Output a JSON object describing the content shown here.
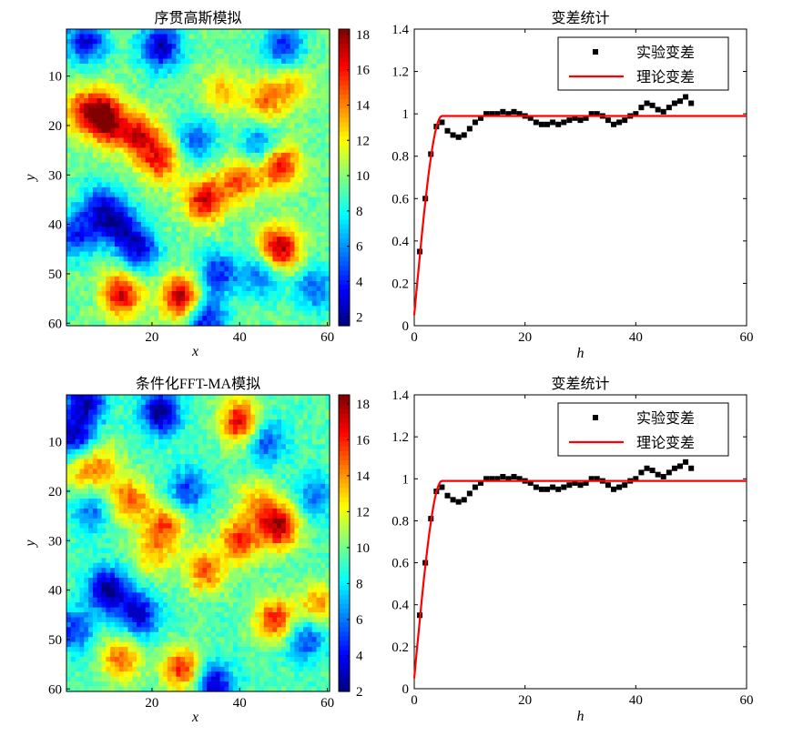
{
  "chart_data": [
    {
      "type": "heatmap",
      "title": "序贯高斯模拟",
      "xlabel": "x",
      "ylabel": "y",
      "xlim": [
        0.5,
        60.5
      ],
      "ylim": [
        0.5,
        60.5
      ],
      "xticks": [
        "20",
        "40",
        "60"
      ],
      "yticks": [
        "10",
        "20",
        "30",
        "40",
        "50",
        "60"
      ],
      "colorbar": {
        "range": [
          1.5,
          18.3
        ],
        "ticks": [
          "2",
          "4",
          "6",
          "8",
          "10",
          "12",
          "14",
          "16",
          "18"
        ],
        "colormap": "jet"
      },
      "base_value": 9.5,
      "peaks": [
        [
          8,
          17,
          16
        ],
        [
          10,
          20,
          15
        ],
        [
          17,
          22,
          16
        ],
        [
          22,
          27,
          16
        ],
        [
          32,
          35,
          17
        ],
        [
          40,
          31,
          15
        ],
        [
          49,
          28,
          17
        ],
        [
          49,
          45,
          18
        ],
        [
          13,
          54,
          17
        ],
        [
          27,
          55,
          18
        ],
        [
          46,
          15,
          14
        ],
        [
          36,
          13,
          13
        ],
        [
          3,
          17,
          13
        ],
        [
          52,
          12,
          13
        ]
      ],
      "lows": [
        [
          5,
          3,
          3
        ],
        [
          22,
          4,
          2
        ],
        [
          12,
          40,
          3
        ],
        [
          17,
          45,
          3
        ],
        [
          32,
          59,
          3
        ],
        [
          3,
          42,
          4
        ],
        [
          30,
          23,
          5
        ],
        [
          35,
          50,
          4
        ],
        [
          45,
          50,
          5
        ],
        [
          57,
          53,
          5
        ],
        [
          45,
          24,
          5
        ],
        [
          50,
          4,
          4
        ],
        [
          8,
          36,
          5
        ]
      ]
    },
    {
      "type": "scatter",
      "title": "变差统计",
      "xlabel": "h",
      "ylabel": "",
      "xlim": [
        0,
        60
      ],
      "ylim": [
        0,
        1.4
      ],
      "xticks": [
        "0",
        "20",
        "40",
        "60"
      ],
      "yticks": [
        "0",
        "0.2",
        "0.4",
        "0.6",
        "0.8",
        "1",
        "1.2",
        "1.4"
      ],
      "legend": {
        "placement": "top-right",
        "entries": [
          "实验变差",
          "理论变差"
        ]
      },
      "series": [
        {
          "name": "实验变差",
          "color": "#000000",
          "x": [
            1,
            2,
            3,
            4,
            5,
            6,
            7,
            8,
            9,
            10,
            11,
            12,
            13,
            14,
            15,
            16,
            17,
            18,
            19,
            20,
            21,
            22,
            23,
            24,
            25,
            26,
            27,
            28,
            29,
            30,
            31,
            32,
            33,
            34,
            35,
            36,
            37,
            38,
            39,
            40,
            41,
            42,
            43,
            44,
            45,
            46,
            47,
            48,
            49,
            50
          ],
          "y": [
            0.35,
            0.6,
            0.81,
            0.94,
            0.96,
            0.92,
            0.9,
            0.89,
            0.9,
            0.93,
            0.96,
            0.98,
            1.0,
            1.0,
            1.0,
            1.01,
            1.0,
            1.01,
            1.0,
            0.99,
            0.98,
            0.96,
            0.95,
            0.95,
            0.96,
            0.95,
            0.96,
            0.97,
            0.98,
            0.97,
            0.98,
            1.0,
            1.0,
            0.99,
            0.97,
            0.95,
            0.96,
            0.97,
            0.99,
            1.0,
            1.03,
            1.05,
            1.04,
            1.02,
            1.01,
            1.03,
            1.05,
            1.06,
            1.08,
            1.05
          ]
        },
        {
          "name": "理论变差",
          "color": "#ff0000",
          "model": "spherical",
          "nugget": 0.05,
          "sill": 0.99,
          "range": 5
        }
      ]
    },
    {
      "type": "heatmap",
      "title": "条件化FFT-MA模拟",
      "xlabel": "x",
      "ylabel": "y",
      "xlim": [
        0.5,
        60.5
      ],
      "ylim": [
        0.5,
        60.5
      ],
      "xticks": [
        "20",
        "40",
        "60"
      ],
      "yticks": [
        "10",
        "20",
        "30",
        "40",
        "50",
        "60"
      ],
      "colorbar": {
        "range": [
          2,
          18.5
        ],
        "ticks": [
          "2",
          "4",
          "6",
          "8",
          "10",
          "12",
          "14",
          "16",
          "18"
        ],
        "colormap": "jet"
      },
      "base_value": 9.5,
      "peaks": [
        [
          40,
          6,
          17
        ],
        [
          15,
          22,
          15
        ],
        [
          23,
          27,
          15
        ],
        [
          32,
          36,
          15
        ],
        [
          40,
          30,
          16
        ],
        [
          49,
          27,
          18
        ],
        [
          48,
          46,
          16
        ],
        [
          13,
          54,
          15
        ],
        [
          27,
          56,
          16
        ],
        [
          58,
          43,
          14
        ],
        [
          4,
          16,
          13
        ],
        [
          9,
          15,
          13
        ],
        [
          44,
          22,
          13
        ],
        [
          20,
          33,
          13
        ]
      ],
      "lows": [
        [
          5,
          2,
          3
        ],
        [
          2,
          9,
          3
        ],
        [
          22,
          4,
          2
        ],
        [
          10,
          40,
          2
        ],
        [
          17,
          45,
          3
        ],
        [
          34,
          59,
          3
        ],
        [
          2,
          48,
          5
        ],
        [
          55,
          50,
          5
        ],
        [
          28,
          20,
          5
        ],
        [
          46,
          10,
          5
        ],
        [
          57,
          21,
          6
        ],
        [
          6,
          24,
          6
        ]
      ]
    },
    {
      "type": "scatter",
      "title": "变差统计",
      "xlabel": "h",
      "ylabel": "",
      "xlim": [
        0,
        60
      ],
      "ylim": [
        0,
        1.4
      ],
      "xticks": [
        "0",
        "20",
        "40",
        "60"
      ],
      "yticks": [
        "0",
        "0.2",
        "0.4",
        "0.6",
        "0.8",
        "1",
        "1.2",
        "1.4"
      ],
      "legend": {
        "placement": "top-right",
        "entries": [
          "实验变差",
          "理论变差"
        ]
      },
      "series": [
        {
          "name": "实验变差",
          "color": "#000000",
          "x": [
            1,
            2,
            3,
            4,
            5,
            6,
            7,
            8,
            9,
            10,
            11,
            12,
            13,
            14,
            15,
            16,
            17,
            18,
            19,
            20,
            21,
            22,
            23,
            24,
            25,
            26,
            27,
            28,
            29,
            30,
            31,
            32,
            33,
            34,
            35,
            36,
            37,
            38,
            39,
            40,
            41,
            42,
            43,
            44,
            45,
            46,
            47,
            48,
            49,
            50
          ],
          "y": [
            0.35,
            0.6,
            0.81,
            0.94,
            0.96,
            0.92,
            0.9,
            0.89,
            0.9,
            0.93,
            0.96,
            0.98,
            1.0,
            1.0,
            1.0,
            1.01,
            1.0,
            1.01,
            1.0,
            0.99,
            0.98,
            0.96,
            0.95,
            0.95,
            0.96,
            0.95,
            0.96,
            0.97,
            0.98,
            0.97,
            0.98,
            1.0,
            1.0,
            0.99,
            0.97,
            0.95,
            0.96,
            0.97,
            0.99,
            1.0,
            1.03,
            1.05,
            1.04,
            1.02,
            1.01,
            1.03,
            1.05,
            1.06,
            1.08,
            1.05
          ]
        },
        {
          "name": "理论变差",
          "color": "#ff0000",
          "model": "spherical",
          "nugget": 0.05,
          "sill": 0.99,
          "range": 5
        }
      ]
    }
  ]
}
